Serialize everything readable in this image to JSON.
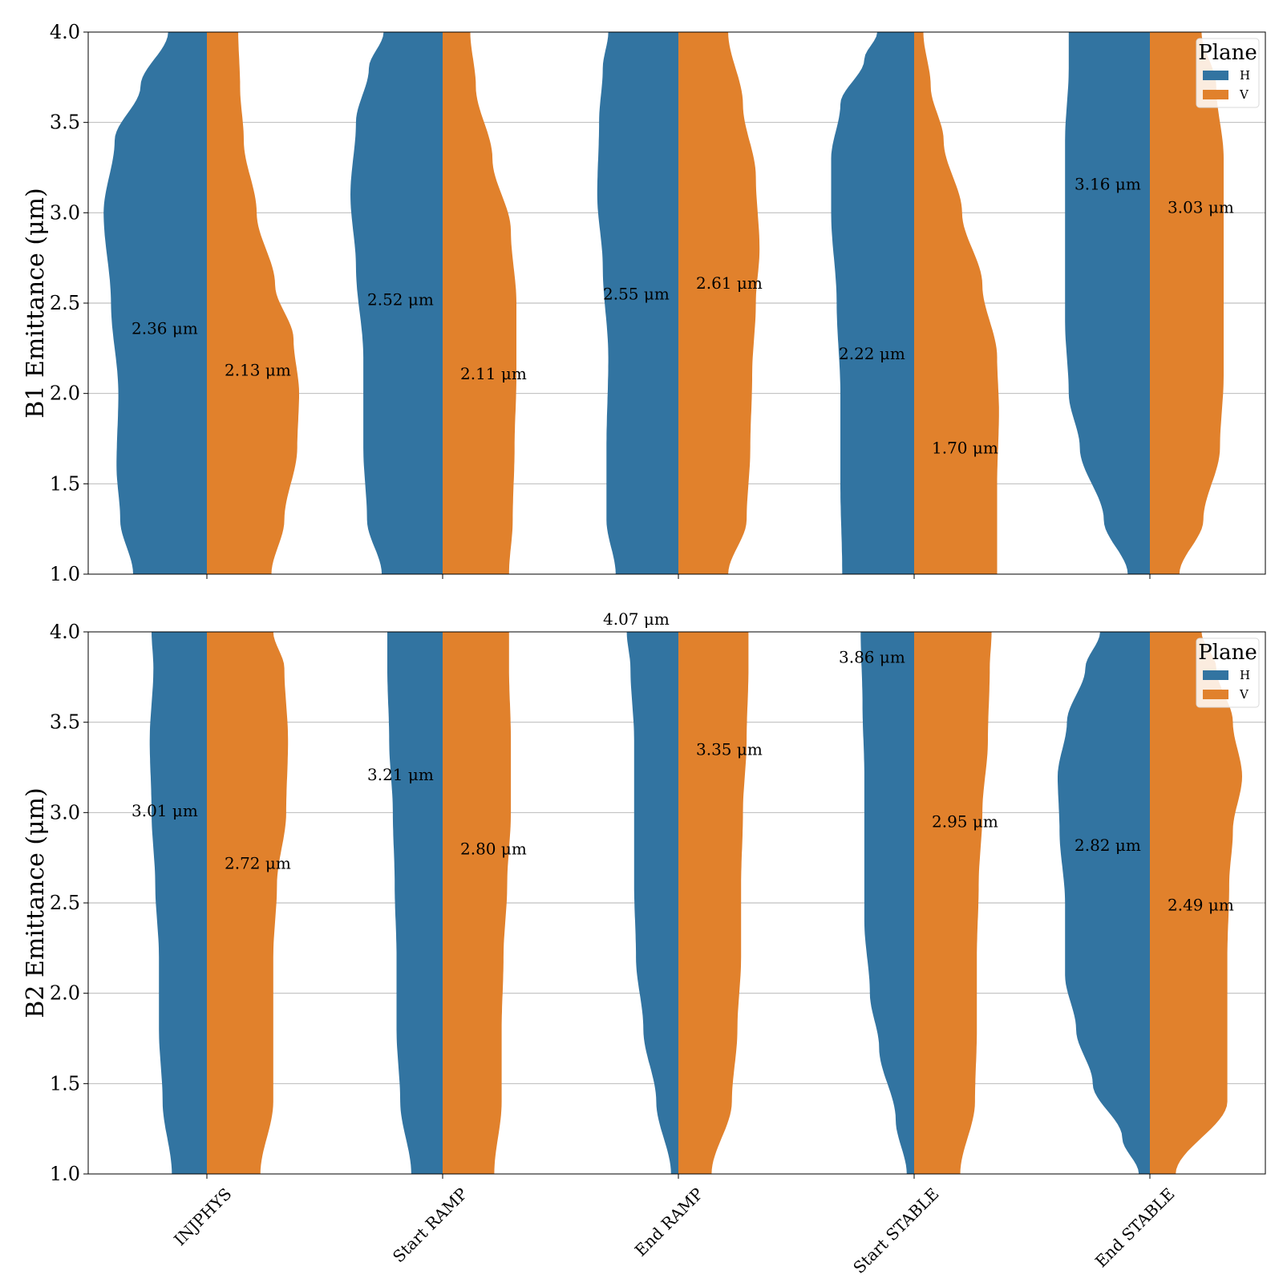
{
  "chart_data": [
    {
      "type": "violin",
      "ylabel": "B1 Emittance (μm)",
      "ylim": [
        1.0,
        4.0
      ],
      "yticks": [
        "1.0",
        "1.5",
        "2.0",
        "2.5",
        "3.0",
        "3.5",
        "4.0"
      ],
      "grid": "horizontal",
      "legend": {
        "title": "Plane",
        "placement": "top-right",
        "entries": [
          "H",
          "V"
        ]
      },
      "categories": [
        "INJPHYS",
        "Start RAMP",
        "End RAMP",
        "Start STABLE",
        "End STABLE"
      ],
      "series": [
        {
          "name": "H",
          "color": "#3274a1",
          "medians": [
            2.36,
            2.52,
            2.55,
            2.22,
            3.16
          ],
          "annotations": [
            "2.36 μm",
            "2.52 μm",
            "2.55 μm",
            "2.22 μm",
            "3.16 μm"
          ],
          "density_profiles": [
            [
              [
                1.0,
                0.4
              ],
              [
                1.3,
                0.47
              ],
              [
                1.6,
                0.49
              ],
              [
                2.0,
                0.48
              ],
              [
                2.5,
                0.52
              ],
              [
                3.0,
                0.56
              ],
              [
                3.4,
                0.5
              ],
              [
                3.7,
                0.36
              ],
              [
                4.0,
                0.21
              ]
            ],
            [
              [
                1.0,
                0.33
              ],
              [
                1.3,
                0.41
              ],
              [
                1.7,
                0.43
              ],
              [
                2.2,
                0.43
              ],
              [
                2.7,
                0.47
              ],
              [
                3.1,
                0.5
              ],
              [
                3.5,
                0.47
              ],
              [
                3.8,
                0.4
              ],
              [
                4.0,
                0.32
              ]
            ],
            [
              [
                1.0,
                0.34
              ],
              [
                1.3,
                0.39
              ],
              [
                1.7,
                0.39
              ],
              [
                2.2,
                0.38
              ],
              [
                2.7,
                0.41
              ],
              [
                3.1,
                0.44
              ],
              [
                3.5,
                0.43
              ],
              [
                3.8,
                0.41
              ],
              [
                4.0,
                0.38
              ]
            ],
            [
              [
                1.0,
                0.39
              ],
              [
                1.5,
                0.4
              ],
              [
                2.0,
                0.4
              ],
              [
                2.5,
                0.42
              ],
              [
                3.0,
                0.45
              ],
              [
                3.3,
                0.45
              ],
              [
                3.6,
                0.4
              ],
              [
                3.85,
                0.27
              ],
              [
                4.0,
                0.2
              ]
            ],
            [
              [
                1.0,
                0.12
              ],
              [
                1.3,
                0.25
              ],
              [
                1.7,
                0.38
              ],
              [
                2.0,
                0.44
              ],
              [
                2.4,
                0.46
              ],
              [
                2.9,
                0.46
              ],
              [
                3.4,
                0.46
              ],
              [
                3.8,
                0.44
              ],
              [
                4.0,
                0.44
              ]
            ]
          ]
        },
        {
          "name": "V",
          "color": "#e1812c",
          "medians": [
            2.13,
            2.11,
            2.61,
            1.7,
            3.03
          ],
          "annotations": [
            "2.13 μm",
            "2.11 μm",
            "2.61 μm",
            "1.70 μm",
            "3.03 μm"
          ],
          "density_profiles": [
            [
              [
                1.0,
                0.35
              ],
              [
                1.3,
                0.42
              ],
              [
                1.7,
                0.49
              ],
              [
                2.0,
                0.5
              ],
              [
                2.3,
                0.47
              ],
              [
                2.6,
                0.37
              ],
              [
                3.0,
                0.27
              ],
              [
                3.4,
                0.2
              ],
              [
                3.7,
                0.18
              ],
              [
                4.0,
                0.17
              ]
            ],
            [
              [
                1.0,
                0.36
              ],
              [
                1.3,
                0.38
              ],
              [
                1.7,
                0.39
              ],
              [
                2.1,
                0.4
              ],
              [
                2.5,
                0.4
              ],
              [
                2.9,
                0.37
              ],
              [
                3.3,
                0.27
              ],
              [
                3.7,
                0.18
              ],
              [
                4.0,
                0.15
              ]
            ],
            [
              [
                1.0,
                0.27
              ],
              [
                1.3,
                0.37
              ],
              [
                1.7,
                0.39
              ],
              [
                2.1,
                0.4
              ],
              [
                2.5,
                0.42
              ],
              [
                2.8,
                0.44
              ],
              [
                3.2,
                0.42
              ],
              [
                3.6,
                0.35
              ],
              [
                4.0,
                0.27
              ]
            ],
            [
              [
                1.0,
                0.45
              ],
              [
                1.5,
                0.45
              ],
              [
                1.9,
                0.46
              ],
              [
                2.2,
                0.45
              ],
              [
                2.6,
                0.37
              ],
              [
                3.0,
                0.26
              ],
              [
                3.4,
                0.16
              ],
              [
                3.7,
                0.09
              ],
              [
                4.0,
                0.05
              ]
            ],
            [
              [
                1.0,
                0.16
              ],
              [
                1.3,
                0.29
              ],
              [
                1.7,
                0.38
              ],
              [
                2.1,
                0.4
              ],
              [
                2.5,
                0.4
              ],
              [
                2.9,
                0.4
              ],
              [
                3.3,
                0.4
              ],
              [
                3.7,
                0.36
              ],
              [
                4.0,
                0.28
              ]
            ]
          ]
        }
      ]
    },
    {
      "type": "violin",
      "ylabel": "B2 Emittance (μm)",
      "ylim": [
        1.0,
        4.0
      ],
      "yticks": [
        "1.0",
        "1.5",
        "2.0",
        "2.5",
        "3.0",
        "3.5",
        "4.0"
      ],
      "grid": "horizontal",
      "legend": {
        "title": "Plane",
        "placement": "top-right",
        "entries": [
          "H",
          "V"
        ]
      },
      "categories": [
        "INJPHYS",
        "Start RAMP",
        "End RAMP",
        "Start STABLE",
        "End STABLE"
      ],
      "series": [
        {
          "name": "H",
          "color": "#3274a1",
          "medians": [
            3.01,
            3.21,
            4.07,
            3.86,
            2.82
          ],
          "annotations": [
            "3.01 μm",
            "3.21 μm",
            "4.07 μm",
            "3.86 μm",
            "2.82 μm"
          ],
          "density_profiles": [
            [
              [
                1.0,
                0.19
              ],
              [
                1.4,
                0.24
              ],
              [
                1.8,
                0.26
              ],
              [
                2.2,
                0.26
              ],
              [
                2.6,
                0.28
              ],
              [
                3.0,
                0.3
              ],
              [
                3.4,
                0.31
              ],
              [
                3.8,
                0.29
              ],
              [
                4.0,
                0.3
              ]
            ],
            [
              [
                1.0,
                0.17
              ],
              [
                1.4,
                0.23
              ],
              [
                1.8,
                0.25
              ],
              [
                2.2,
                0.25
              ],
              [
                2.6,
                0.26
              ],
              [
                3.0,
                0.27
              ],
              [
                3.4,
                0.29
              ],
              [
                3.8,
                0.3
              ],
              [
                4.0,
                0.3
              ]
            ],
            [
              [
                1.0,
                0.04
              ],
              [
                1.4,
                0.12
              ],
              [
                1.8,
                0.19
              ],
              [
                2.2,
                0.23
              ],
              [
                2.6,
                0.24
              ],
              [
                3.0,
                0.24
              ],
              [
                3.4,
                0.24
              ],
              [
                3.8,
                0.26
              ],
              [
                4.0,
                0.28
              ]
            ],
            [
              [
                1.0,
                0.04
              ],
              [
                1.3,
                0.1
              ],
              [
                1.7,
                0.19
              ],
              [
                2.0,
                0.24
              ],
              [
                2.4,
                0.27
              ],
              [
                2.8,
                0.27
              ],
              [
                3.2,
                0.27
              ],
              [
                3.6,
                0.28
              ],
              [
                4.0,
                0.29
              ]
            ],
            [
              [
                1.0,
                0.06
              ],
              [
                1.2,
                0.15
              ],
              [
                1.5,
                0.31
              ],
              [
                1.8,
                0.4
              ],
              [
                2.1,
                0.46
              ],
              [
                2.5,
                0.46
              ],
              [
                2.9,
                0.49
              ],
              [
                3.2,
                0.5
              ],
              [
                3.5,
                0.45
              ],
              [
                3.8,
                0.35
              ],
              [
                4.0,
                0.27
              ]
            ]
          ]
        },
        {
          "name": "V",
          "color": "#e1812c",
          "medians": [
            2.72,
            2.8,
            3.35,
            2.95,
            2.49
          ],
          "annotations": [
            "2.72 μm",
            "2.80 μm",
            "3.35 μm",
            "2.95 μm",
            "2.49 μm"
          ],
          "density_profiles": [
            [
              [
                1.0,
                0.29
              ],
              [
                1.4,
                0.36
              ],
              [
                1.8,
                0.36
              ],
              [
                2.2,
                0.36
              ],
              [
                2.6,
                0.38
              ],
              [
                3.0,
                0.43
              ],
              [
                3.4,
                0.44
              ],
              [
                3.8,
                0.42
              ],
              [
                4.0,
                0.36
              ]
            ],
            [
              [
                1.0,
                0.28
              ],
              [
                1.4,
                0.32
              ],
              [
                1.8,
                0.32
              ],
              [
                2.2,
                0.33
              ],
              [
                2.6,
                0.35
              ],
              [
                3.0,
                0.37
              ],
              [
                3.4,
                0.37
              ],
              [
                3.8,
                0.36
              ],
              [
                4.0,
                0.36
              ]
            ],
            [
              [
                1.0,
                0.18
              ],
              [
                1.4,
                0.29
              ],
              [
                1.8,
                0.32
              ],
              [
                2.2,
                0.34
              ],
              [
                2.6,
                0.34
              ],
              [
                3.0,
                0.35
              ],
              [
                3.4,
                0.37
              ],
              [
                3.8,
                0.38
              ],
              [
                4.0,
                0.38
              ]
            ],
            [
              [
                1.0,
                0.25
              ],
              [
                1.4,
                0.33
              ],
              [
                1.8,
                0.34
              ],
              [
                2.2,
                0.34
              ],
              [
                2.6,
                0.35
              ],
              [
                3.0,
                0.37
              ],
              [
                3.4,
                0.4
              ],
              [
                3.8,
                0.41
              ],
              [
                4.0,
                0.42
              ]
            ],
            [
              [
                1.0,
                0.14
              ],
              [
                1.4,
                0.42
              ],
              [
                1.8,
                0.42
              ],
              [
                2.2,
                0.42
              ],
              [
                2.6,
                0.43
              ],
              [
                2.9,
                0.45
              ],
              [
                3.2,
                0.5
              ],
              [
                3.5,
                0.45
              ],
              [
                3.8,
                0.36
              ],
              [
                4.0,
                0.28
              ]
            ]
          ]
        }
      ]
    }
  ]
}
